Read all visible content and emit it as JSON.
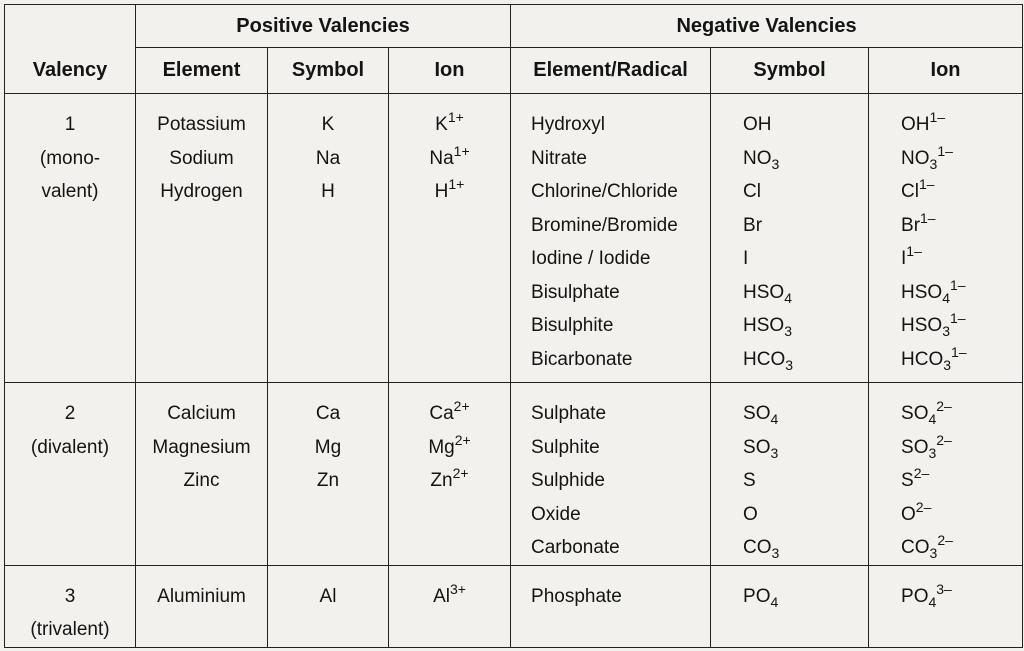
{
  "headers": {
    "positive_group": "Positive Valencies",
    "negative_group": "Negative Valencies",
    "valency": "Valency",
    "element": "Element",
    "symbol": "Symbol",
    "ion": "Ion",
    "element_radical": "Element/Radical",
    "neg_symbol": "Symbol",
    "neg_ion": "Ion"
  },
  "rows": [
    {
      "valency": [
        "1",
        "(mono-",
        "valent)"
      ],
      "positive": [
        {
          "element": "Potassium",
          "symbol": "K",
          "ion_base": "K",
          "ion_charge": "1+"
        },
        {
          "element": "Sodium",
          "symbol": "Na",
          "ion_base": "Na",
          "ion_charge": "1+"
        },
        {
          "element": "Hydrogen",
          "symbol": "H",
          "ion_base": "H",
          "ion_charge": "1+"
        }
      ],
      "negative": [
        {
          "name": "Hydroxyl",
          "sym_base": "OH",
          "sym_sub": "",
          "ion_base": "OH",
          "ion_sub": "",
          "ion_charge": "1–"
        },
        {
          "name": "Nitrate",
          "sym_base": "NO",
          "sym_sub": "3",
          "ion_base": "NO",
          "ion_sub": "3",
          "ion_charge": "1–"
        },
        {
          "name": "Chlorine/Chloride",
          "sym_base": "Cl",
          "sym_sub": "",
          "ion_base": "Cl",
          "ion_sub": "",
          "ion_charge": "1–"
        },
        {
          "name": "Bromine/Bromide",
          "sym_base": "Br",
          "sym_sub": "",
          "ion_base": "Br",
          "ion_sub": "",
          "ion_charge": "1–"
        },
        {
          "name": "Iodine / Iodide",
          "sym_base": "I",
          "sym_sub": "",
          "ion_base": "I",
          "ion_sub": "",
          "ion_charge": "1–"
        },
        {
          "name": "Bisulphate",
          "sym_base": "HSO",
          "sym_sub": "4",
          "ion_base": "HSO",
          "ion_sub": "4",
          "ion_charge": "1–"
        },
        {
          "name": "Bisulphite",
          "sym_base": "HSO",
          "sym_sub": "3",
          "ion_base": "HSO",
          "ion_sub": "3",
          "ion_charge": "1–"
        },
        {
          "name": "Bicarbonate",
          "sym_base": "HCO",
          "sym_sub": "3",
          "ion_base": "HCO",
          "ion_sub": "3",
          "ion_charge": "1–"
        }
      ]
    },
    {
      "valency": [
        "2",
        "(divalent)"
      ],
      "positive": [
        {
          "element": "Calcium",
          "symbol": "Ca",
          "ion_base": "Ca",
          "ion_charge": "2+"
        },
        {
          "element": "Magnesium",
          "symbol": "Mg",
          "ion_base": "Mg",
          "ion_charge": "2+"
        },
        {
          "element": "Zinc",
          "symbol": "Zn",
          "ion_base": "Zn",
          "ion_charge": "2+"
        }
      ],
      "negative": [
        {
          "name": "Sulphate",
          "sym_base": "SO",
          "sym_sub": "4",
          "ion_base": "SO",
          "ion_sub": "4",
          "ion_charge": "2–"
        },
        {
          "name": "Sulphite",
          "sym_base": "SO",
          "sym_sub": "3",
          "ion_base": "SO",
          "ion_sub": "3",
          "ion_charge": "2–"
        },
        {
          "name": "Sulphide",
          "sym_base": "S",
          "sym_sub": "",
          "ion_base": "S",
          "ion_sub": "",
          "ion_charge": "2–"
        },
        {
          "name": "Oxide",
          "sym_base": "O",
          "sym_sub": "",
          "ion_base": "O",
          "ion_sub": "",
          "ion_charge": "2–"
        },
        {
          "name": "Carbonate",
          "sym_base": "CO",
          "sym_sub": "3",
          "ion_base": "CO",
          "ion_sub": "3",
          "ion_charge": "2–"
        }
      ]
    },
    {
      "valency": [
        "3",
        "(trivalent)"
      ],
      "positive": [
        {
          "element": "Aluminium",
          "symbol": "Al",
          "ion_base": "Al",
          "ion_charge": "3+"
        }
      ],
      "negative": [
        {
          "name": "Phosphate",
          "sym_base": "PO",
          "sym_sub": "4",
          "ion_base": "PO",
          "ion_sub": "4",
          "ion_charge": "3–"
        }
      ]
    }
  ]
}
